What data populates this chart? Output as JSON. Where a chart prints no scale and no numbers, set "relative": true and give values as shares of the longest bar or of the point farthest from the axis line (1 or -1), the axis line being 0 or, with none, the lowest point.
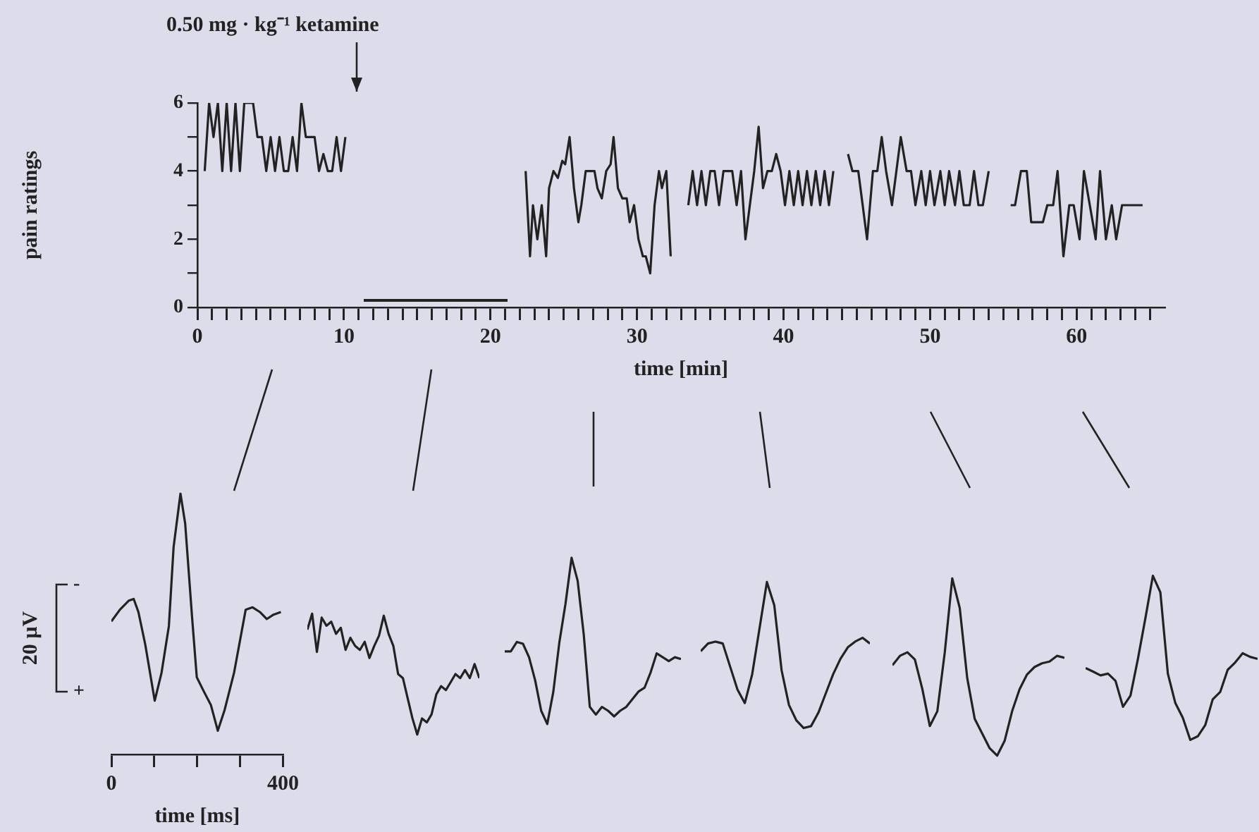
{
  "chart_data": [
    {
      "type": "line",
      "ylabel": "pain ratings",
      "xlabel": "time [min]",
      "xlim": [
        0,
        66
      ],
      "ylim": [
        0,
        6
      ],
      "grid": false,
      "legend": false,
      "marker": "none",
      "xticks": [
        0,
        {
          "value": 1,
          "label": null
        },
        {
          "value": 2,
          "label": null
        },
        {
          "value": 3,
          "label": null
        },
        {
          "value": 4,
          "label": null
        },
        {
          "value": 5,
          "label": null
        },
        {
          "value": 6,
          "label": null
        },
        {
          "value": 7,
          "label": null
        },
        {
          "value": 8,
          "label": null
        },
        {
          "value": 9,
          "label": null
        },
        10,
        {
          "value": 11,
          "label": null
        },
        {
          "value": 12,
          "label": null
        },
        {
          "value": 13,
          "label": null
        },
        {
          "value": 14,
          "label": null
        },
        {
          "value": 15,
          "label": null
        },
        {
          "value": 16,
          "label": null
        },
        {
          "value": 17,
          "label": null
        },
        {
          "value": 18,
          "label": null
        },
        {
          "value": 19,
          "label": null
        },
        20,
        {
          "value": 21,
          "label": null
        },
        {
          "value": 22,
          "label": null
        },
        {
          "value": 23,
          "label": null
        },
        {
          "value": 24,
          "label": null
        },
        {
          "value": 25,
          "label": null
        },
        {
          "value": 26,
          "label": null
        },
        {
          "value": 27,
          "label": null
        },
        {
          "value": 28,
          "label": null
        },
        {
          "value": 29,
          "label": null
        },
        30,
        {
          "value": 31,
          "label": null
        },
        {
          "value": 32,
          "label": null
        },
        {
          "value": 33,
          "label": null
        },
        {
          "value": 34,
          "label": null
        },
        {
          "value": 35,
          "label": null
        },
        {
          "value": 36,
          "label": null
        },
        {
          "value": 37,
          "label": null
        },
        {
          "value": 38,
          "label": null
        },
        {
          "value": 39,
          "label": null
        },
        40,
        {
          "value": 41,
          "label": null
        },
        {
          "value": 42,
          "label": null
        },
        {
          "value": 43,
          "label": null
        },
        {
          "value": 44,
          "label": null
        },
        {
          "value": 45,
          "label": null
        },
        {
          "value": 46,
          "label": null
        },
        {
          "value": 47,
          "label": null
        },
        {
          "value": 48,
          "label": null
        },
        {
          "value": 49,
          "label": null
        },
        50,
        {
          "value": 51,
          "label": null
        },
        {
          "value": 52,
          "label": null
        },
        {
          "value": 53,
          "label": null
        },
        {
          "value": 54,
          "label": null
        },
        {
          "value": 55,
          "label": null
        },
        {
          "value": 56,
          "label": null
        },
        {
          "value": 57,
          "label": null
        },
        {
          "value": 58,
          "label": null
        },
        {
          "value": 59,
          "label": null
        },
        60,
        {
          "value": 61,
          "label": null
        },
        {
          "value": 62,
          "label": null
        },
        {
          "value": 63,
          "label": null
        },
        {
          "value": 64,
          "label": null
        },
        {
          "value": 65,
          "label": null
        }
      ],
      "yticks": [
        0,
        {
          "value": 1,
          "label": null
        },
        2,
        {
          "value": 3,
          "label": null
        },
        4,
        {
          "value": 5,
          "label": null
        },
        6
      ],
      "x": [
        0.5,
        0.8,
        1.1,
        1.4,
        1.7,
        2.0,
        2.3,
        2.6,
        2.9,
        3.2,
        3.5,
        3.8,
        4.1,
        4.4,
        4.7,
        5.0,
        5.3,
        5.6,
        5.9,
        6.2,
        6.5,
        6.8,
        7.1,
        7.4,
        7.7,
        8.0,
        8.3,
        8.6,
        8.9,
        9.2,
        9.5,
        9.8,
        10.1,
        16,
        22.4,
        22.7,
        22.9,
        23.2,
        23.5,
        23.8,
        24.0,
        24.3,
        24.6,
        24.9,
        25.1,
        25.4,
        25.7,
        26.0,
        26.2,
        26.5,
        26.8,
        27.1,
        27.3,
        27.6,
        27.9,
        28.2,
        28.4,
        28.7,
        29.0,
        29.3,
        29.5,
        29.8,
        30.1,
        30.4,
        30.6,
        30.9,
        31.2,
        31.5,
        31.7,
        32.0,
        32.3,
        33,
        33.5,
        33.8,
        34.1,
        34.4,
        34.7,
        35.0,
        35.3,
        35.6,
        35.9,
        36.2,
        36.5,
        36.8,
        37.1,
        37.4,
        37.7,
        38.0,
        38.3,
        38.6,
        38.9,
        39.2,
        39.5,
        39.8,
        40.1,
        40.4,
        40.7,
        41.0,
        41.3,
        41.6,
        41.9,
        42.2,
        42.5,
        42.8,
        43.1,
        43.4,
        44,
        44.4,
        44.7,
        45.1,
        45.4,
        45.7,
        46.1,
        46.4,
        46.7,
        47.0,
        47.4,
        47.7,
        48.0,
        48.4,
        48.7,
        49.0,
        49.4,
        49.7,
        50.0,
        50.3,
        50.7,
        51.0,
        51.3,
        51.7,
        52.0,
        52.3,
        52.7,
        53.0,
        53.3,
        53.6,
        54.0,
        55,
        55.5,
        55.8,
        56.2,
        56.6,
        56.9,
        57.3,
        57.7,
        58.0,
        58.4,
        58.7,
        59.1,
        59.5,
        59.8,
        60.2,
        60.5,
        60.9,
        61.3,
        61.6,
        62.0,
        62.4,
        62.7,
        63.1,
        63.4,
        64.0,
        64.5
      ],
      "series": [
        {
          "color": "#222222",
          "values": [
            4,
            6,
            5,
            6,
            4,
            6,
            4,
            6,
            4,
            6,
            6,
            6,
            5,
            5,
            4,
            5,
            4,
            5,
            4,
            4,
            5,
            4,
            6,
            5,
            5,
            5,
            4,
            4.5,
            4,
            4,
            5,
            4,
            5,
            null,
            4,
            1.5,
            3,
            2,
            3,
            1.5,
            3.5,
            4,
            3.8,
            4.3,
            4.2,
            5,
            3.5,
            2.5,
            3,
            4,
            4,
            4,
            3.5,
            3.2,
            4,
            4.2,
            5,
            3.5,
            3.2,
            3.2,
            2.5,
            3,
            2,
            1.5,
            1.5,
            1,
            3,
            4,
            3.5,
            4,
            1.5,
            null,
            3,
            4,
            3,
            4,
            3,
            4,
            4,
            3,
            4,
            4,
            4,
            3,
            4,
            2,
            3,
            4,
            5.3,
            3.5,
            4,
            4,
            4.5,
            4,
            3,
            4,
            3,
            4,
            3,
            4,
            3,
            4,
            3,
            4,
            3,
            4,
            null,
            4.5,
            4,
            4,
            3,
            2,
            4,
            4,
            5,
            4,
            3,
            4,
            5,
            4,
            4,
            3,
            4,
            3,
            4,
            3,
            4,
            3,
            4,
            3,
            4,
            3,
            3,
            4,
            3,
            3,
            4,
            null,
            3,
            3,
            4,
            4,
            2.5,
            2.5,
            2.5,
            3,
            3,
            4,
            1.5,
            3,
            3,
            2,
            4,
            3,
            2,
            4,
            2,
            3,
            2,
            3,
            3,
            3,
            3
          ]
        }
      ],
      "annotations": [
        "0.50 mg · kg⁻¹ ketamine"
      ]
    },
    {
      "type": "line",
      "relative": true,
      "xlabel": "time [ms]",
      "ylabel": "20 µV",
      "xlim": [
        0,
        400
      ],
      "xticks": [
        0,
        {
          "value": 100,
          "label": null
        },
        {
          "value": 200,
          "label": null
        },
        {
          "value": 300,
          "label": null
        },
        400
      ],
      "tick_labels": "x",
      "legend": false,
      "grid": false,
      "marker": "none",
      "x": [
        0,
        20,
        41,
        52,
        63,
        79,
        101,
        117,
        134,
        145,
        161,
        172,
        188,
        199,
        215,
        232,
        248,
        264,
        286,
        313,
        329,
        346,
        362,
        378,
        395
      ],
      "series": [
        {
          "color": "#222222",
          "values": [
            0.51,
            0.555,
            0.59,
            0.596,
            0.546,
            0.421,
            0.206,
            0.314,
            0.492,
            0.795,
            1,
            0.885,
            0.527,
            0.296,
            0.243,
            0.189,
            0.091,
            0.171,
            0.314,
            0.555,
            0.564,
            0.546,
            0.519,
            0.536,
            0.546
          ]
        }
      ],
      "annotations": [
        "-",
        "+"
      ]
    },
    {
      "type": "line",
      "relative": true,
      "tick_labels": false,
      "legend": false,
      "grid": false,
      "marker": "none",
      "categories": [
        null,
        null,
        null,
        null,
        null,
        null,
        null,
        null,
        null,
        null,
        null,
        null,
        null,
        null,
        null,
        null,
        null,
        null,
        null,
        null,
        null,
        null,
        null,
        null,
        null,
        null,
        null,
        null,
        null,
        null,
        null,
        null,
        null,
        null,
        null,
        null,
        null
      ],
      "series": [
        {
          "color": "#222222",
          "values": [
            0.867,
            1,
            0.683,
            0.967,
            0.9,
            0.933,
            0.833,
            0.883,
            0.7,
            0.8,
            0.733,
            0.7,
            0.767,
            0.633,
            0.733,
            0.817,
            0.983,
            0.833,
            0.733,
            0.5,
            0.467,
            0.3,
            0.133,
            0,
            0.133,
            0.1,
            0.167,
            0.333,
            0.4,
            0.367,
            0.433,
            0.5,
            0.467,
            0.533,
            0.467,
            0.583,
            0.467
          ]
        }
      ]
    },
    {
      "type": "line",
      "relative": true,
      "tick_labels": false,
      "legend": false,
      "grid": false,
      "marker": "none",
      "categories": [
        null,
        null,
        null,
        null,
        null,
        null,
        null,
        null,
        null,
        null,
        null,
        null,
        null,
        null,
        null,
        null,
        null,
        null,
        null,
        null,
        null,
        null,
        null,
        null,
        null,
        null,
        null,
        null,
        null,
        null
      ],
      "series": [
        {
          "color": "#222222",
          "values": [
            0.437,
            0.437,
            0.494,
            0.483,
            0.402,
            0.264,
            0.08,
            0,
            0.195,
            0.494,
            0.724,
            1,
            0.862,
            0.54,
            0.103,
            0.057,
            0.103,
            0.08,
            0.046,
            0.08,
            0.103,
            0.149,
            0.195,
            0.218,
            0.31,
            0.425,
            0.402,
            0.379,
            0.402,
            0.391
          ]
        }
      ]
    },
    {
      "type": "line",
      "relative": true,
      "tick_labels": false,
      "legend": false,
      "grid": false,
      "marker": "none",
      "categories": [
        null,
        null,
        null,
        null,
        null,
        null,
        null,
        null,
        null,
        null,
        null,
        null,
        null,
        null,
        null,
        null,
        null,
        null,
        null,
        null,
        null,
        null,
        null,
        null
      ],
      "series": [
        {
          "color": "#222222",
          "values": [
            0.526,
            0.579,
            0.592,
            0.579,
            0.421,
            0.263,
            0.171,
            0.368,
            0.684,
            1,
            0.842,
            0.395,
            0.158,
            0.053,
            0,
            0.013,
            0.105,
            0.237,
            0.368,
            0.474,
            0.553,
            0.592,
            0.618,
            0.579
          ]
        }
      ]
    },
    {
      "type": "line",
      "relative": true,
      "tick_labels": false,
      "legend": false,
      "grid": false,
      "marker": "none",
      "categories": [
        null,
        null,
        null,
        null,
        null,
        null,
        null,
        null,
        null,
        null,
        null,
        null,
        null,
        null,
        null,
        null,
        null,
        null,
        null,
        null,
        null,
        null,
        null,
        null
      ],
      "series": [
        {
          "color": "#222222",
          "values": [
            0.51,
            0.563,
            0.583,
            0.542,
            0.375,
            0.167,
            0.25,
            0.583,
            1,
            0.833,
            0.438,
            0.208,
            0.125,
            0.042,
            0,
            0.083,
            0.25,
            0.375,
            0.458,
            0.5,
            0.521,
            0.531,
            0.563,
            0.552
          ]
        }
      ]
    },
    {
      "type": "line",
      "relative": true,
      "tick_labels": false,
      "legend": false,
      "grid": false,
      "marker": "none",
      "categories": [
        null,
        null,
        null,
        null,
        null,
        null,
        null,
        null,
        null,
        null,
        null,
        null,
        null,
        null,
        null,
        null,
        null,
        null,
        null,
        null,
        null,
        null,
        null,
        null
      ],
      "series": [
        {
          "color": "#222222",
          "values": [
            0.438,
            0.416,
            0.393,
            0.404,
            0.36,
            0.202,
            0.27,
            0.494,
            0.742,
            1,
            0.899,
            0.404,
            0.225,
            0.135,
            0,
            0.022,
            0.09,
            0.247,
            0.292,
            0.427,
            0.472,
            0.528,
            0.506,
            0.494
          ]
        }
      ]
    }
  ]
}
